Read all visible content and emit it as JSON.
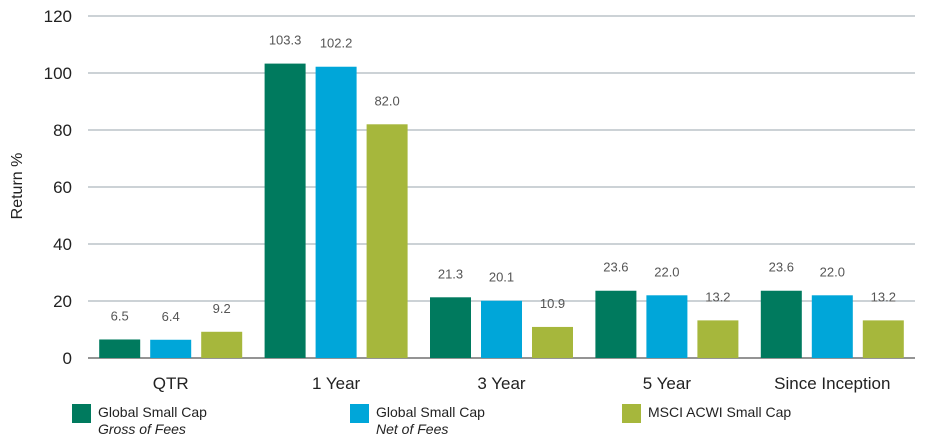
{
  "chart_data": {
    "type": "bar",
    "title": "",
    "xlabel": "",
    "ylabel": "Return %",
    "ylim": [
      0,
      120
    ],
    "yticks": [
      0,
      20,
      40,
      60,
      80,
      100,
      120
    ],
    "grid": true,
    "legend_position": "bottom",
    "categories": [
      "QTR",
      "1 Year",
      "3 Year",
      "5 Year",
      "Since Inception"
    ],
    "series": [
      {
        "name": "Global Small Cap",
        "subtitle": "Gross of Fees",
        "color": "#007a5e",
        "values": [
          6.5,
          103.3,
          21.3,
          23.6,
          23.6
        ],
        "labels": [
          "6.5",
          "103.3",
          "21.3",
          "23.6",
          "23.6"
        ]
      },
      {
        "name": "Global Small Cap",
        "subtitle": "Net of Fees",
        "color": "#00a6d9",
        "values": [
          6.4,
          102.2,
          20.1,
          22.0,
          22.0
        ],
        "labels": [
          "6.4",
          "102.2",
          "20.1",
          "22.0",
          "22.0"
        ]
      },
      {
        "name": "MSCI ACWI Small Cap",
        "subtitle": "",
        "color": "#a6b73c",
        "values": [
          9.2,
          82.0,
          10.9,
          13.2,
          13.2
        ],
        "labels": [
          "9.2",
          "82.0",
          "10.9",
          "13.2",
          "13.2"
        ]
      }
    ]
  }
}
